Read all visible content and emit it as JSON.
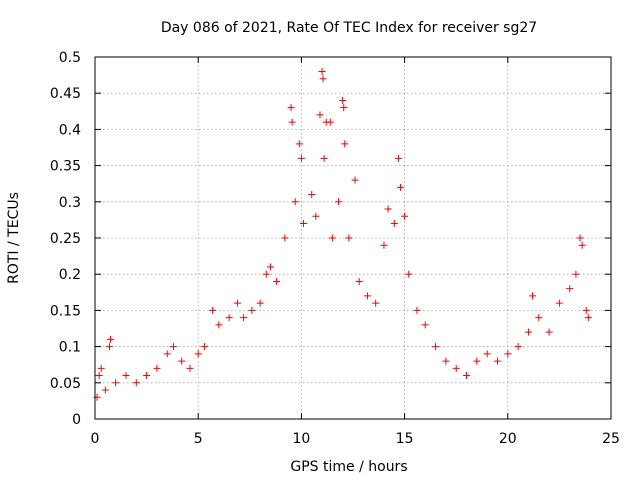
{
  "chart_data": {
    "type": "scatter",
    "title": "Day 086 of 2021, Rate Of TEC Index for receiver sg27",
    "xlabel": "GPS time / hours",
    "ylabel": "ROTI / TECUs",
    "xlim": [
      0,
      25
    ],
    "ylim": [
      0,
      0.5
    ],
    "x_ticks": [
      "0",
      "5",
      "10",
      "15",
      "20",
      "25"
    ],
    "y_ticks": [
      "0",
      "0.05",
      "0.1",
      "0.15",
      "0.2",
      "0.25",
      "0.3",
      "0.35",
      "0.4",
      "0.45",
      "0.5"
    ],
    "grid": true,
    "marker": "+",
    "color": "#ff0000",
    "series": [
      {
        "name": "ROTI",
        "points": [
          [
            0.1,
            0.03
          ],
          [
            0.2,
            0.06
          ],
          [
            0.3,
            0.07
          ],
          [
            0.5,
            0.04
          ],
          [
            0.7,
            0.1
          ],
          [
            0.75,
            0.11
          ],
          [
            1.0,
            0.05
          ],
          [
            1.5,
            0.06
          ],
          [
            2.0,
            0.05
          ],
          [
            2.5,
            0.06
          ],
          [
            3.0,
            0.07
          ],
          [
            3.5,
            0.09
          ],
          [
            3.8,
            0.1
          ],
          [
            4.2,
            0.08
          ],
          [
            4.6,
            0.07
          ],
          [
            5.0,
            0.09
          ],
          [
            5.3,
            0.1
          ],
          [
            5.7,
            0.15
          ],
          [
            6.0,
            0.13
          ],
          [
            6.5,
            0.14
          ],
          [
            6.9,
            0.16
          ],
          [
            7.2,
            0.14
          ],
          [
            7.6,
            0.15
          ],
          [
            8.0,
            0.16
          ],
          [
            8.3,
            0.2
          ],
          [
            8.5,
            0.21
          ],
          [
            8.8,
            0.19
          ],
          [
            9.2,
            0.25
          ],
          [
            9.5,
            0.43
          ],
          [
            9.55,
            0.41
          ],
          [
            9.7,
            0.3
          ],
          [
            9.9,
            0.38
          ],
          [
            10.0,
            0.36
          ],
          [
            10.1,
            0.27
          ],
          [
            10.5,
            0.31
          ],
          [
            10.7,
            0.28
          ],
          [
            10.9,
            0.42
          ],
          [
            11.0,
            0.48
          ],
          [
            11.05,
            0.47
          ],
          [
            11.1,
            0.36
          ],
          [
            11.2,
            0.41
          ],
          [
            11.4,
            0.41
          ],
          [
            11.5,
            0.25
          ],
          [
            11.8,
            0.3
          ],
          [
            12.0,
            0.44
          ],
          [
            12.05,
            0.43
          ],
          [
            12.1,
            0.38
          ],
          [
            12.3,
            0.25
          ],
          [
            12.6,
            0.33
          ],
          [
            12.8,
            0.19
          ],
          [
            13.2,
            0.17
          ],
          [
            13.6,
            0.16
          ],
          [
            14.0,
            0.24
          ],
          [
            14.2,
            0.29
          ],
          [
            14.5,
            0.27
          ],
          [
            14.7,
            0.36
          ],
          [
            14.8,
            0.32
          ],
          [
            15.0,
            0.28
          ],
          [
            15.2,
            0.2
          ],
          [
            15.6,
            0.15
          ],
          [
            16.0,
            0.13
          ],
          [
            16.5,
            0.1
          ],
          [
            17.0,
            0.08
          ],
          [
            17.5,
            0.07
          ],
          [
            18.0,
            0.06
          ],
          [
            18.5,
            0.08
          ],
          [
            19.0,
            0.09
          ],
          [
            19.5,
            0.08
          ],
          [
            20.0,
            0.09
          ],
          [
            20.5,
            0.1
          ],
          [
            21.0,
            0.12
          ],
          [
            21.2,
            0.17
          ],
          [
            21.5,
            0.14
          ],
          [
            22.0,
            0.12
          ],
          [
            22.5,
            0.16
          ],
          [
            23.0,
            0.18
          ],
          [
            23.3,
            0.2
          ],
          [
            23.5,
            0.25
          ],
          [
            23.6,
            0.24
          ],
          [
            23.8,
            0.15
          ],
          [
            23.9,
            0.14
          ]
        ]
      }
    ]
  }
}
